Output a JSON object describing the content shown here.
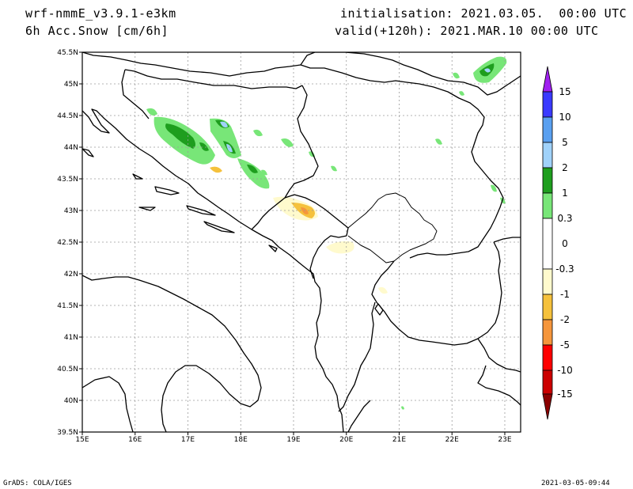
{
  "header": {
    "model": "wrf-nmmE_v3.9.1-e3km",
    "variable": "6h Acc.Snow [cm/6h]",
    "init": "initialisation: 2021.03.05.  00:00 UTC",
    "valid": "valid(+120h): 2021.MAR.10 00:00 UTC"
  },
  "footer": {
    "left": "GrADS: COLA/IGES",
    "right": "2021-03-05-09:44"
  },
  "map": {
    "lon_range": [
      15,
      23.3
    ],
    "lat_range": [
      39.5,
      45.5
    ],
    "lon_ticks": [
      "15E",
      "16E",
      "17E",
      "18E",
      "19E",
      "20E",
      "21E",
      "22E",
      "23E"
    ],
    "lat_ticks": [
      "45.5N",
      "45N",
      "44.5N",
      "44N",
      "43.5N",
      "43N",
      "42.5N",
      "42N",
      "41.5N",
      "41N",
      "40.5N",
      "40N",
      "39.5N"
    ],
    "grid": true
  },
  "colorbar": {
    "labels": [
      "15",
      "10",
      "5",
      "2",
      "1",
      "0.3",
      "0",
      "-0.3",
      "-1",
      "-2",
      "-5",
      "-10",
      "-15"
    ],
    "colors": {
      "top_arrow": "#a020f0",
      "c10_15": "#3a3aff",
      "c5_10": "#5aa0f0",
      "c2_5": "#a0d2fa",
      "c1_2": "#1e9e1e",
      "c03_1": "#78e678",
      "zero": "#ffffff",
      "n03_1": "#fffacd",
      "n1_2": "#f5c13c",
      "n2_5": "#f5963c",
      "n5_10": "#ff0000",
      "n10_15": "#cc0000",
      "bottom_arrow": "#8b0000"
    }
  }
}
